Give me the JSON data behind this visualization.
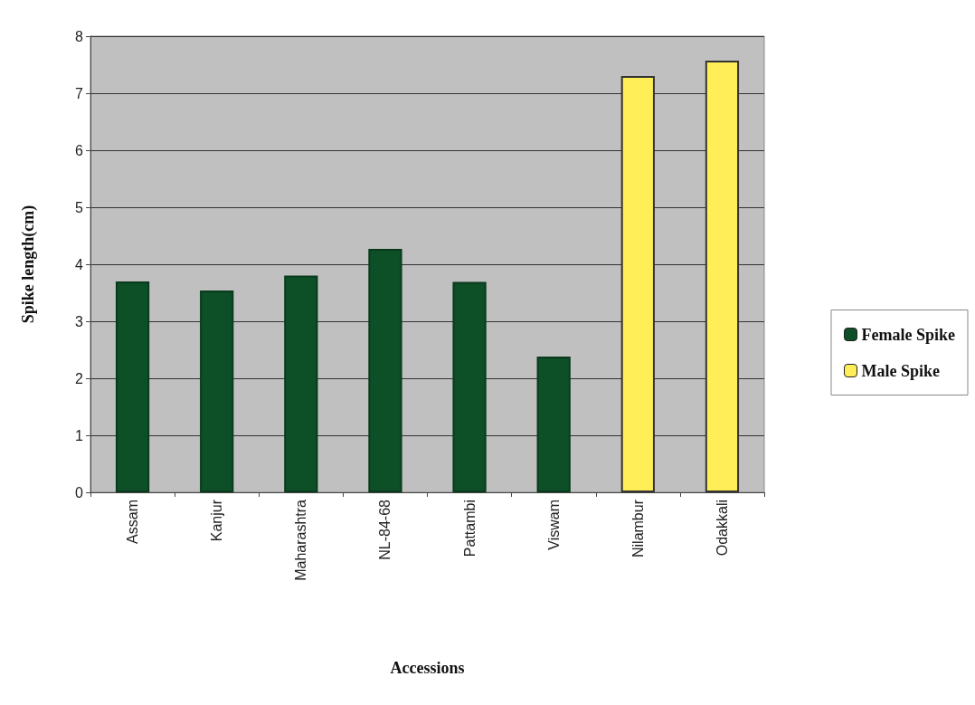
{
  "chart_data": {
    "type": "bar",
    "xlabel": "Accessions",
    "ylabel": "Spike length(cm)",
    "categories": [
      "Assam",
      "Kanjur",
      "Maharashtra",
      "NL-84-68",
      "Pattambi",
      "Viswam",
      "Nilambur",
      "Odakkali"
    ],
    "series": [
      {
        "name": "Female Spike",
        "color": "#0d4f26",
        "values": [
          3.7,
          3.54,
          3.8,
          4.27,
          3.69,
          2.38,
          null,
          null
        ]
      },
      {
        "name": "Male Spike",
        "color": "#ffee58",
        "values": [
          null,
          null,
          null,
          null,
          null,
          null,
          7.3,
          7.57
        ]
      }
    ],
    "ylim": [
      0,
      8
    ],
    "yticks": [
      0,
      1,
      2,
      3,
      4,
      5,
      6,
      7,
      8
    ],
    "grid": "y",
    "legend": "right"
  }
}
